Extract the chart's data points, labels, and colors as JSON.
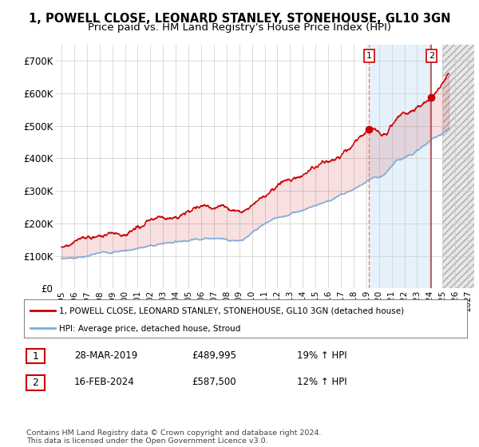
{
  "title": "1, POWELL CLOSE, LEONARD STANLEY, STONEHOUSE, GL10 3GN",
  "subtitle": "Price paid vs. HM Land Registry's House Price Index (HPI)",
  "ylim": [
    0,
    750000
  ],
  "yticks": [
    0,
    100000,
    200000,
    300000,
    400000,
    500000,
    600000,
    700000
  ],
  "ytick_labels": [
    "£0",
    "£100K",
    "£200K",
    "£300K",
    "£400K",
    "£500K",
    "£600K",
    "£700K"
  ],
  "xlim_start": 1994.5,
  "xlim_end": 2027.5,
  "xtick_years": [
    1995,
    1996,
    1997,
    1998,
    1999,
    2000,
    2001,
    2002,
    2003,
    2004,
    2005,
    2006,
    2007,
    2008,
    2009,
    2010,
    2011,
    2012,
    2013,
    2014,
    2015,
    2016,
    2017,
    2018,
    2019,
    2020,
    2021,
    2022,
    2023,
    2024,
    2025,
    2026,
    2027
  ],
  "hpi_color": "#7aaddc",
  "price_color": "#cc0000",
  "sale1_x": 2019.23,
  "sale1_y": 489995,
  "sale1_label": "1",
  "sale2_x": 2024.12,
  "sale2_y": 587500,
  "sale2_label": "2",
  "legend_line1": "1, POWELL CLOSE, LEONARD STANLEY, STONEHOUSE, GL10 3GN (detached house)",
  "legend_line2": "HPI: Average price, detached house, Stroud",
  "table_row1_num": "1",
  "table_row1_date": "28-MAR-2019",
  "table_row1_price": "£489,995",
  "table_row1_hpi": "19% ↑ HPI",
  "table_row2_num": "2",
  "table_row2_date": "16-FEB-2024",
  "table_row2_price": "£587,500",
  "table_row2_hpi": "12% ↑ HPI",
  "footer": "Contains HM Land Registry data © Crown copyright and database right 2024.\nThis data is licensed under the Open Government Licence v3.0.",
  "background_color": "#ffffff",
  "grid_color": "#cccccc",
  "title_fontsize": 10.5,
  "subtitle_fontsize": 9.5,
  "hatch_start": 2025.0
}
